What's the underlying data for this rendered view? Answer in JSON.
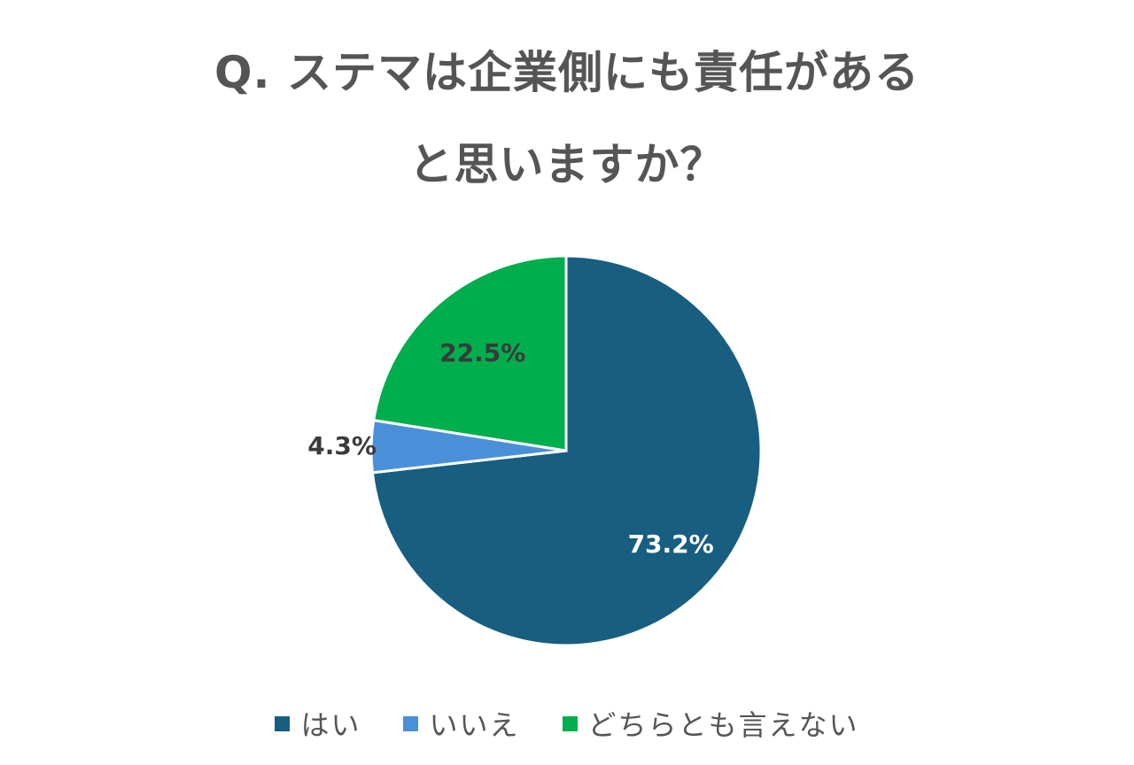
{
  "chart_data": {
    "type": "pie",
    "title_line1": "Q. ステマは企業側にも責任がある",
    "title_line2": "と思いますか？",
    "slices": [
      {
        "label": "はい",
        "value": 73.2,
        "display": "73.2%",
        "color": "#175e80"
      },
      {
        "label": "いいえ",
        "value": 4.3,
        "display": "4.3%",
        "color": "#4a90d9"
      },
      {
        "label": "どちらとも言えない",
        "value": 22.5,
        "display": "22.5%",
        "color": "#00ae4d"
      }
    ],
    "legend_position": "bottom"
  },
  "colors": {
    "title_text": "#555555",
    "label_dark": "#3a3a3a",
    "label_light": "#ffffff"
  }
}
